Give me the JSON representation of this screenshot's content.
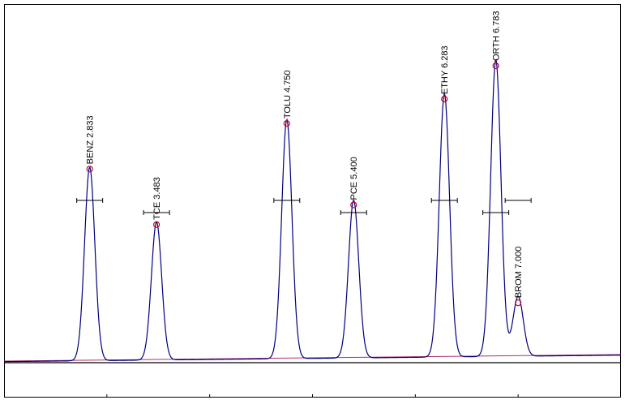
{
  "chart_data": {
    "type": "chromatogram",
    "x": [
      2.833,
      3.483,
      4.75,
      5.4,
      6.283,
      6.783,
      7.0
    ],
    "values": [
      54,
      38.5,
      66.7,
      44,
      73.5,
      82.8,
      16.7
    ],
    "value_labels": [
      "BENZ 2.833",
      "TCE 3.483",
      "TOLU 4.750",
      "PCE 5.400",
      "ETHY 6.283",
      "ORTH 6.783",
      "BROM 7.000"
    ],
    "color": "#00007f",
    "marker_color": "#c0002a",
    "baseline_color": "#b0306a",
    "xlim": [
      2,
      8
    ],
    "xticks": [
      3,
      4,
      5,
      6,
      7
    ],
    "ylim": [
      0,
      100
    ]
  }
}
